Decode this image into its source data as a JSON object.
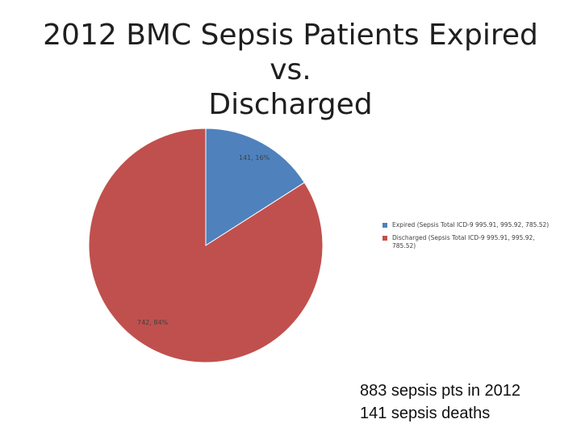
{
  "title_lines": [
    "2012 BMC Sepsis Patients Expired vs.",
    "Discharged"
  ],
  "chart_data": {
    "type": "pie",
    "title": "",
    "slices": [
      {
        "name": "Expired (Sepsis Total ICD-9 995.91, 995.92, 785.52)",
        "value": 141,
        "percent": 16,
        "label": "141, 16%",
        "color": "#4f81bd"
      },
      {
        "name": "Discharged (Sepsis Total ICD-9 995.91, 995.92, 785.52)",
        "value": 742,
        "percent": 84,
        "label": "742, 84%",
        "color": "#c0504d"
      }
    ],
    "start_angle": "12 o'clock, clockwise",
    "legend_position": "right"
  },
  "notes": [
    "883 sepsis pts in 2012",
    "141 sepsis deaths"
  ]
}
